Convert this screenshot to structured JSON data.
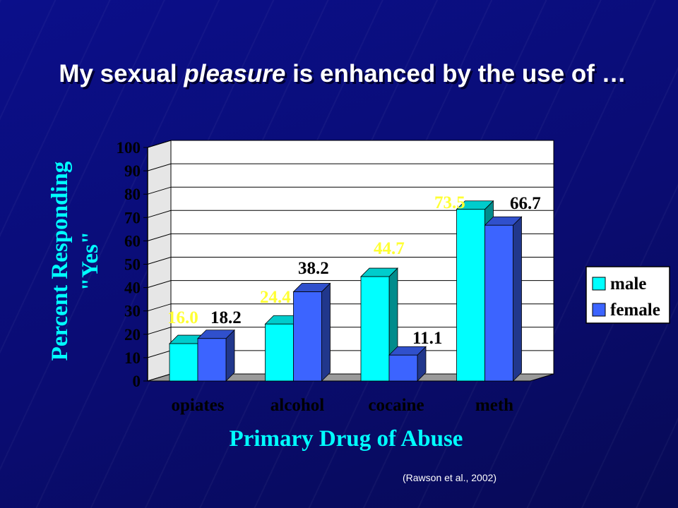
{
  "title": {
    "before": "My sexual ",
    "emphasis": "pleasure",
    "after": " is enhanced by the use of …"
  },
  "source": "(Rawson et al., 2002)",
  "colors": {
    "male": "#00ffff",
    "female": "#3c64ff",
    "axis_text": "#00ffff",
    "male_label": "#ffff33",
    "female_label": "#000000"
  },
  "chart_data": {
    "type": "bar",
    "title": "My sexual pleasure is enhanced by the use of …",
    "xlabel": "Primary Drug of Abuse",
    "ylabel": "Percent Responding \"Yes\"",
    "ylim": [
      0,
      100
    ],
    "yticks": [
      0,
      10,
      20,
      30,
      40,
      50,
      60,
      70,
      80,
      90,
      100
    ],
    "categories": [
      "opiates",
      "alcohol",
      "cocaine",
      "meth"
    ],
    "series": [
      {
        "name": "male",
        "values": [
          16.0,
          24.4,
          44.7,
          73.5
        ],
        "labels": [
          "16.0",
          "24.4",
          "44.7",
          "73.5"
        ]
      },
      {
        "name": "female",
        "values": [
          18.2,
          38.2,
          11.1,
          66.7
        ],
        "labels": [
          "18.2",
          "38.2",
          "11.1",
          "66.7"
        ]
      }
    ],
    "legend_position": "right",
    "grid": true
  }
}
